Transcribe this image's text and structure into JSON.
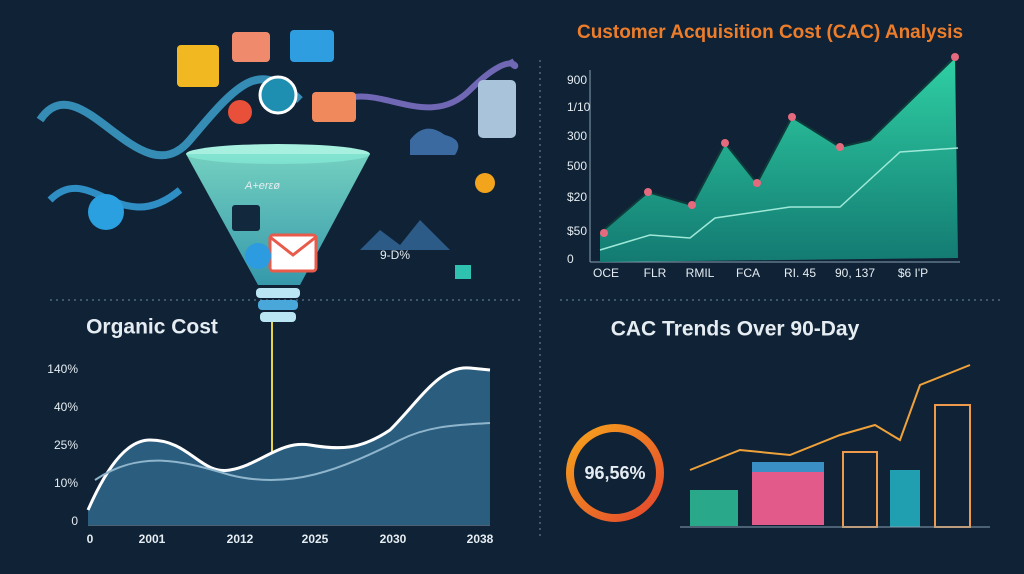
{
  "illustration": {
    "funnel_label": "A+erεø",
    "caption": "9-D%"
  },
  "top_right": {
    "title": "Customer Acquisition Cost (CAC) Analysis",
    "y_labels": [
      "900",
      "1/10",
      "300",
      "500",
      "$20",
      "$50",
      "0"
    ],
    "x_labels": [
      "OCE",
      "FLR",
      "RMIL",
      "FCA",
      "RI. 45",
      "90, 137",
      "$6 I'P"
    ]
  },
  "bottom_left": {
    "title": "Organic Cost",
    "y_labels": [
      "140%",
      "40%",
      "25%",
      "10%",
      "0"
    ],
    "x_labels": [
      "0",
      "2001",
      "2012",
      "2025",
      "2030",
      "2038"
    ]
  },
  "bottom_right": {
    "title": "CAC Trends Over 90-Day",
    "gauge_label": "96,56%"
  }
}
